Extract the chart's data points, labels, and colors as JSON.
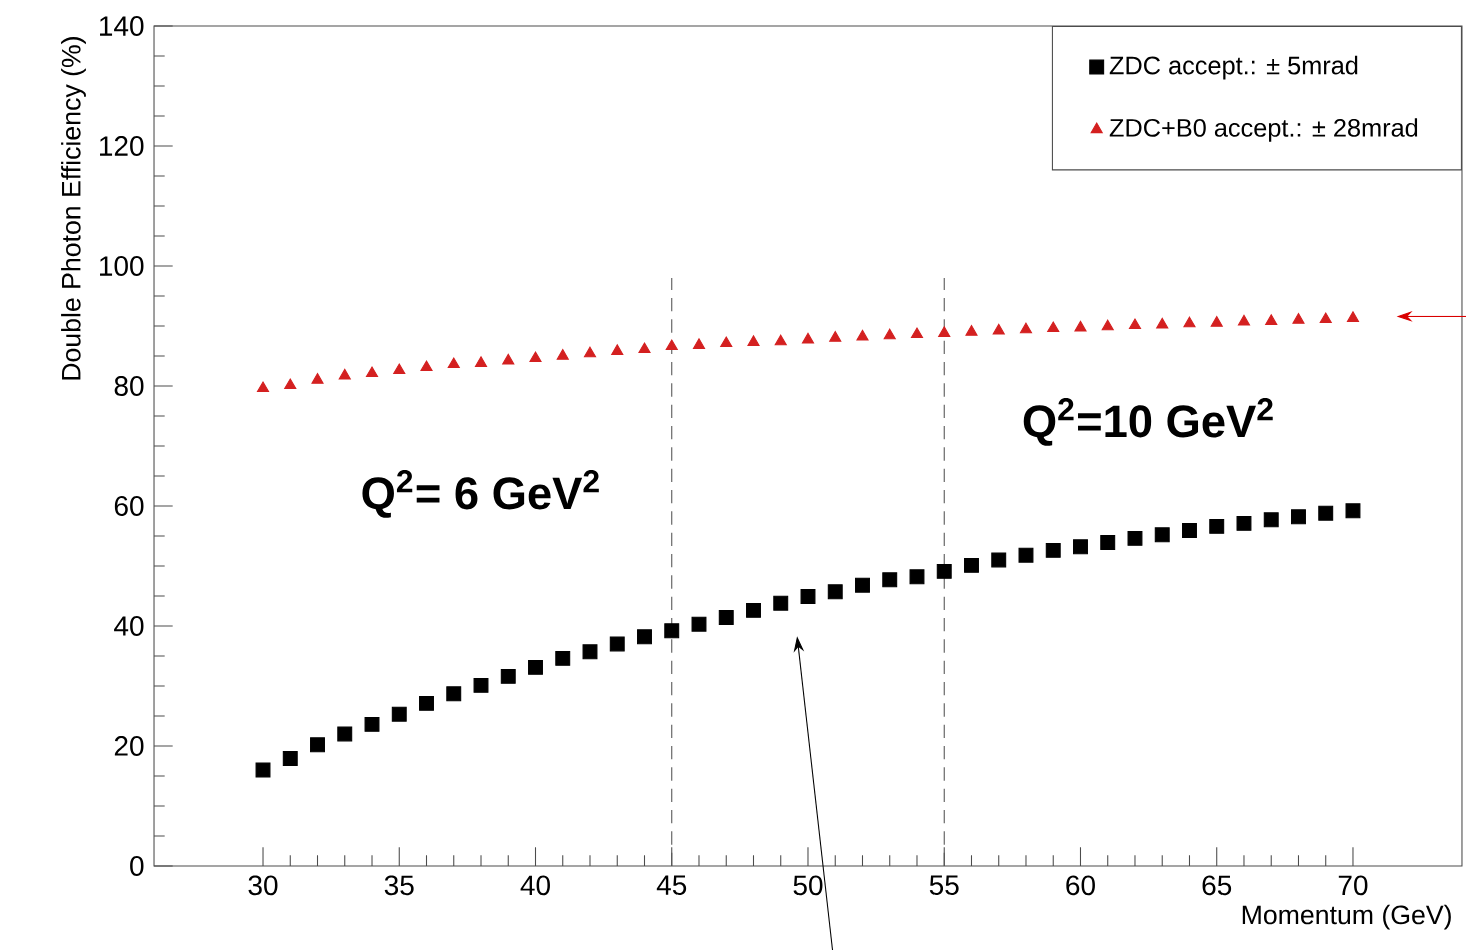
{
  "chart_data": {
    "type": "scatter",
    "xlabel": "Momentum (GeV)",
    "ylabel": "Double Photon Efficiency (%)",
    "x": [
      30,
      31,
      32,
      33,
      34,
      35,
      36,
      37,
      38,
      39,
      40,
      41,
      42,
      43,
      44,
      45,
      46,
      47,
      48,
      49,
      50,
      51,
      52,
      53,
      54,
      55,
      56,
      57,
      58,
      59,
      60,
      61,
      62,
      63,
      64,
      65,
      66,
      67,
      68,
      69,
      70
    ],
    "series": [
      {
        "name": "ZDC accept.: ± 5mrad",
        "color": "#000000",
        "marker": "square",
        "values": [
          16.0,
          17.9,
          20.2,
          22.0,
          23.6,
          25.3,
          27.1,
          28.7,
          30.1,
          31.6,
          33.1,
          34.6,
          35.7,
          37.0,
          38.2,
          39.2,
          40.3,
          41.4,
          42.6,
          43.8,
          44.9,
          45.7,
          46.8,
          47.7,
          48.2,
          49.1,
          50.1,
          51.0,
          51.8,
          52.6,
          53.2,
          53.9,
          54.6,
          55.2,
          55.9,
          56.6,
          57.1,
          57.7,
          58.2,
          58.8,
          59.2
        ]
      },
      {
        "name": "ZDC+B0 accept.: ± 28mrad",
        "color": "#d42020",
        "marker": "triangle",
        "values": [
          79.6,
          80.1,
          81.0,
          81.7,
          82.1,
          82.6,
          83.1,
          83.6,
          83.8,
          84.2,
          84.6,
          85.0,
          85.4,
          85.8,
          86.1,
          86.6,
          86.8,
          87.1,
          87.3,
          87.4,
          87.7,
          88.0,
          88.2,
          88.4,
          88.6,
          88.8,
          89.0,
          89.2,
          89.4,
          89.6,
          89.7,
          89.9,
          90.1,
          90.2,
          90.4,
          90.5,
          90.7,
          90.8,
          91.0,
          91.1,
          91.3
        ]
      }
    ],
    "xlim": [
      26,
      74
    ],
    "ylim": [
      0,
      140
    ],
    "xticks": [
      30,
      35,
      40,
      45,
      50,
      55,
      60,
      65,
      70
    ],
    "yticks": [
      0,
      20,
      40,
      60,
      80,
      100,
      120,
      140
    ],
    "ref_lines": [
      {
        "axis": "x",
        "value": 45,
        "color": "#555555",
        "line_style": "dashed"
      },
      {
        "axis": "x",
        "value": 55,
        "color": "#555555",
        "line_style": "dashed"
      }
    ],
    "annotations": [
      "Q$^{2}$= 6 GeV$^{2}$",
      "Q$^{2}$=10 GeV$^{2}$"
    ],
    "legend": "top right",
    "grid": false
  }
}
